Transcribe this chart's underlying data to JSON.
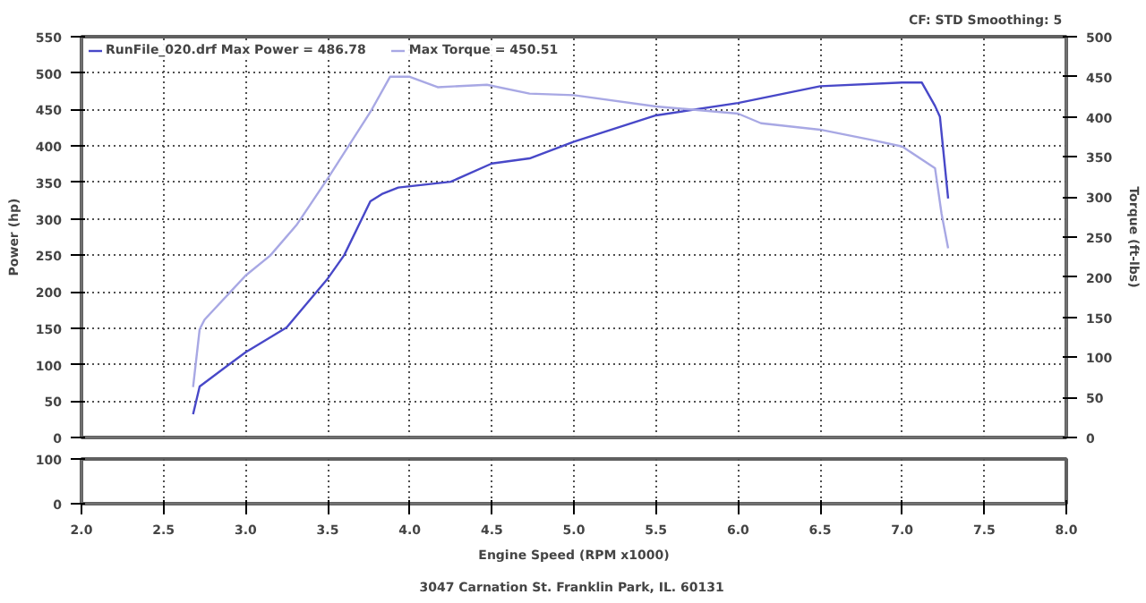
{
  "chart_data": [
    {
      "type": "line",
      "ylabel": "Power (hp)",
      "y2label": "Torque (ft-lbs)",
      "annotations": [
        "CF: STD  Smoothing: 5"
      ],
      "xlim": [
        2,
        8
      ],
      "xticks": [
        {
          "value": 2,
          "label": null
        },
        {
          "value": 2.5,
          "label": null
        },
        {
          "value": 3,
          "label": null
        },
        {
          "value": 3.5,
          "label": null
        },
        {
          "value": 4,
          "label": null
        },
        {
          "value": 4.5,
          "label": null
        },
        {
          "value": 5,
          "label": null
        },
        {
          "value": 5.5,
          "label": null
        },
        {
          "value": 6,
          "label": null
        },
        {
          "value": 6.5,
          "label": null
        },
        {
          "value": 7,
          "label": null
        },
        {
          "value": 7.5,
          "label": null
        },
        {
          "value": 8,
          "label": null
        }
      ],
      "ylim": [
        0,
        550
      ],
      "yticks": [
        0,
        50,
        100,
        150,
        200,
        250,
        300,
        350,
        400,
        450,
        500,
        550
      ],
      "y2lim": [
        0,
        500
      ],
      "y2ticks": [
        0,
        50,
        100,
        150,
        200,
        250,
        300,
        350,
        400,
        450,
        500
      ],
      "grid": true,
      "legend": "top left",
      "tick_labels": "y",
      "line_style": "solid",
      "series": [
        {
          "name": "RunFile_020.drf Max Power = 486.78",
          "color": "#4848c8",
          "x": [
            2.68,
            2.72,
            3.0,
            3.25,
            3.5,
            3.6,
            3.76,
            3.83,
            3.93,
            4.25,
            4.5,
            4.73,
            5.0,
            5.5,
            6.0,
            6.5,
            7.0,
            7.12,
            7.2,
            7.23,
            7.28
          ],
          "values": [
            32,
            70,
            117,
            151,
            218,
            250,
            324,
            334,
            343,
            351,
            376,
            383,
            406,
            442,
            459,
            482,
            487,
            487,
            455,
            440,
            328
          ]
        },
        {
          "name": "Max Torque = 450.51",
          "color": "#a8a8e4",
          "axis": "y2",
          "x": [
            2.68,
            2.72,
            2.75,
            3.0,
            3.15,
            3.31,
            3.5,
            3.76,
            3.88,
            4.0,
            4.17,
            4.47,
            4.73,
            5.0,
            5.5,
            6.0,
            6.14,
            6.5,
            6.82,
            7.0,
            7.2,
            7.24,
            7.28
          ],
          "values": [
            63,
            135,
            147,
            202,
            227,
            265,
            323,
            406,
            450,
            450,
            437,
            440,
            429,
            427,
            413,
            404,
            392,
            384,
            371,
            363,
            336,
            279,
            236
          ]
        }
      ]
    },
    {
      "type": "line",
      "xlabel": "Engine Speed (RPM x1000)",
      "annotations": [
        "3047 Carnation St.  Franklin Park, IL. 60131"
      ],
      "xlim": [
        2,
        8
      ],
      "xticks": [
        {
          "value": 2,
          "label": "2.0"
        },
        {
          "value": 2.5,
          "label": "2.5"
        },
        {
          "value": 3,
          "label": "3.0"
        },
        {
          "value": 3.5,
          "label": "3.5"
        },
        {
          "value": 4,
          "label": "4.0"
        },
        {
          "value": 4.5,
          "label": "4.5"
        },
        {
          "value": 5,
          "label": "5.0"
        },
        {
          "value": 5.5,
          "label": "5.5"
        },
        {
          "value": 6,
          "label": "6.0"
        },
        {
          "value": 6.5,
          "label": "6.5"
        },
        {
          "value": 7,
          "label": "7.0"
        },
        {
          "value": 7.5,
          "label": "7.5"
        },
        {
          "value": 8,
          "label": "8.0"
        }
      ],
      "ylim": [
        0,
        100
      ],
      "yticks": [
        0,
        100
      ],
      "grid": true
    }
  ]
}
